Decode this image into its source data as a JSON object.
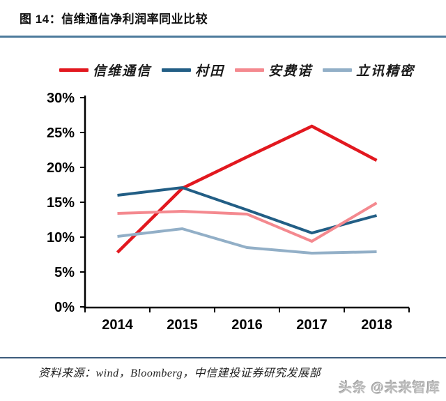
{
  "header": {
    "title": "图 14：信维通信净利润率同业比较"
  },
  "footer": {
    "source": "资料来源：wind，Bloomberg，中信建投证券研究发展部",
    "watermark": "头条 @未来智库"
  },
  "colors": {
    "title_rule": "#4d7a9b",
    "footer_rule": "#3d5c7c",
    "axis": "#000000",
    "watermark_gray": "#bcbcbc"
  },
  "chart_data": {
    "type": "line",
    "title": "信维通信净利润率同业比较",
    "categories": [
      "2014",
      "2015",
      "2016",
      "2017",
      "2018"
    ],
    "series": [
      {
        "name": "信维通信",
        "color": "#e2181f",
        "values": [
          7.8,
          17.0,
          21.5,
          25.9,
          21.0
        ]
      },
      {
        "name": "村田",
        "color": "#225e85",
        "values": [
          16.0,
          17.1,
          13.9,
          10.6,
          13.1
        ]
      },
      {
        "name": "安费诺",
        "color": "#f4898f",
        "values": [
          13.4,
          13.7,
          13.3,
          9.4,
          14.9
        ]
      },
      {
        "name": "立讯精密",
        "color": "#92afc7",
        "values": [
          10.1,
          11.2,
          8.5,
          7.7,
          7.9
        ]
      }
    ],
    "ylim": [
      0,
      30
    ],
    "ytick_step": 5,
    "ytick_labels": [
      "0%",
      "5%",
      "10%",
      "15%",
      "20%",
      "25%",
      "30%"
    ],
    "xlabel": "",
    "ylabel": "",
    "grid": false,
    "legend_position": "top"
  }
}
